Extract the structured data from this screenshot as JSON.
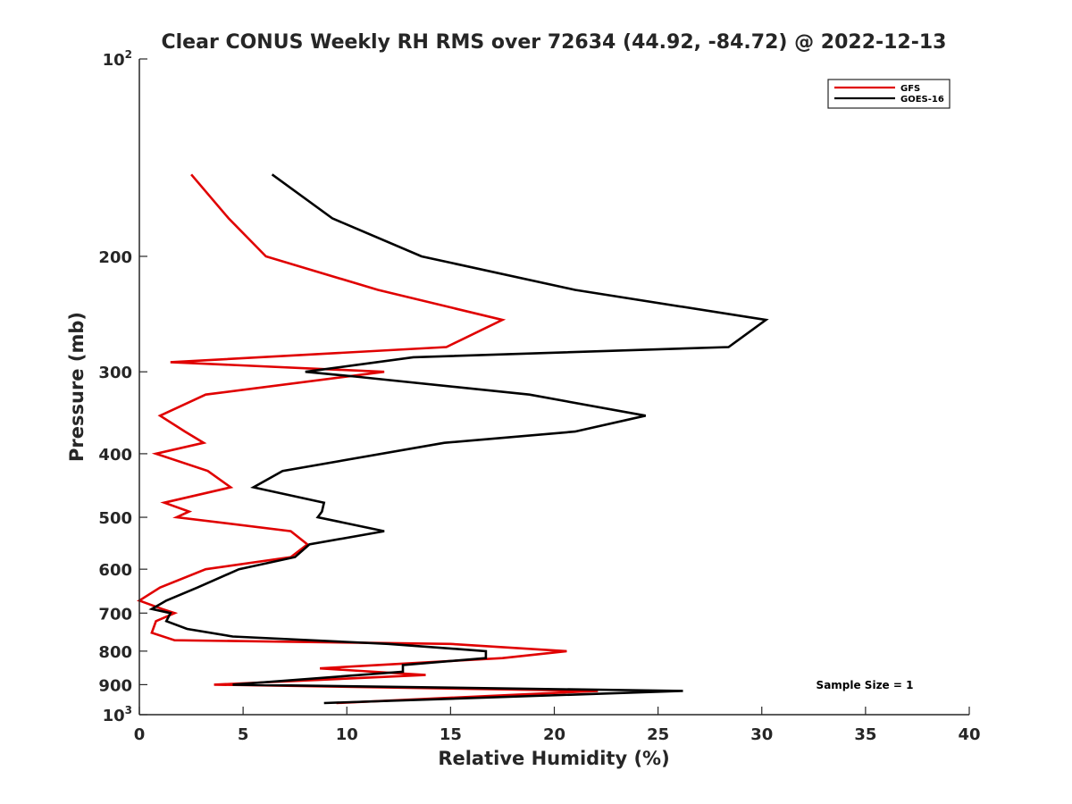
{
  "chart_data": {
    "type": "line",
    "title": "Clear CONUS Weekly RH RMS over 72634 (44.92, -84.72) @ 2022-12-13",
    "xlabel": "Relative Humidity (%)",
    "ylabel": "Pressure (mb)",
    "xlim": [
      0,
      40
    ],
    "ylim": [
      100,
      1000
    ],
    "y_scale": "log",
    "y_reversed": true,
    "x_ticks": [
      "0",
      "5",
      "10",
      "15",
      "20",
      "25",
      "30",
      "35",
      "40"
    ],
    "y_ticks": [
      {
        "value": 100,
        "base": "10",
        "exp": "2"
      },
      {
        "value": 200,
        "label": "200"
      },
      {
        "value": 300,
        "label": "300"
      },
      {
        "value": 400,
        "label": "400"
      },
      {
        "value": 500,
        "label": "500"
      },
      {
        "value": 600,
        "label": "600"
      },
      {
        "value": 700,
        "label": "700"
      },
      {
        "value": 800,
        "label": "800"
      },
      {
        "value": 900,
        "label": "900"
      },
      {
        "value": 1000,
        "base": "10",
        "exp": "3"
      }
    ],
    "legend_position": "top-right",
    "annotation": "Sample Size = 1",
    "series": [
      {
        "name": "GFS",
        "color": "#e00000",
        "points": [
          [
            2.5,
            150
          ],
          [
            4.3,
            175
          ],
          [
            6.1,
            200
          ],
          [
            11.5,
            225
          ],
          [
            17.5,
            250
          ],
          [
            14.8,
            275
          ],
          [
            1.5,
            290
          ],
          [
            11.8,
            300
          ],
          [
            3.2,
            325
          ],
          [
            1.0,
            350
          ],
          [
            2.2,
            370
          ],
          [
            3.1,
            385
          ],
          [
            0.8,
            400
          ],
          [
            3.3,
            425
          ],
          [
            4.4,
            450
          ],
          [
            1.2,
            475
          ],
          [
            2.4,
            490
          ],
          [
            1.8,
            500
          ],
          [
            7.3,
            525
          ],
          [
            8.1,
            550
          ],
          [
            7.3,
            575
          ],
          [
            3.2,
            600
          ],
          [
            1.0,
            640
          ],
          [
            0.0,
            670
          ],
          [
            1.1,
            690
          ],
          [
            1.7,
            700
          ],
          [
            0.8,
            720
          ],
          [
            0.6,
            750
          ],
          [
            1.7,
            770
          ],
          [
            15.0,
            780
          ],
          [
            20.6,
            800
          ],
          [
            17.5,
            820
          ],
          [
            11.5,
            840
          ],
          [
            8.7,
            850
          ],
          [
            13.8,
            870
          ],
          [
            3.6,
            900
          ],
          [
            22.1,
            920
          ],
          [
            9.5,
            960
          ]
        ]
      },
      {
        "name": "GOES-16",
        "color": "#000000",
        "points": [
          [
            6.4,
            150
          ],
          [
            9.3,
            175
          ],
          [
            13.6,
            200
          ],
          [
            21.0,
            225
          ],
          [
            30.2,
            250
          ],
          [
            28.4,
            275
          ],
          [
            13.2,
            285
          ],
          [
            8.0,
            300
          ],
          [
            10.4,
            305
          ],
          [
            18.8,
            325
          ],
          [
            24.4,
            350
          ],
          [
            21.0,
            370
          ],
          [
            14.7,
            385
          ],
          [
            6.9,
            425
          ],
          [
            5.5,
            450
          ],
          [
            8.9,
            475
          ],
          [
            8.8,
            490
          ],
          [
            8.6,
            500
          ],
          [
            11.8,
            525
          ],
          [
            8.2,
            550
          ],
          [
            7.5,
            575
          ],
          [
            4.8,
            600
          ],
          [
            2.8,
            640
          ],
          [
            1.3,
            670
          ],
          [
            0.6,
            690
          ],
          [
            1.5,
            700
          ],
          [
            1.3,
            720
          ],
          [
            2.3,
            740
          ],
          [
            4.5,
            760
          ],
          [
            12.0,
            780
          ],
          [
            16.7,
            800
          ],
          [
            16.7,
            820
          ],
          [
            12.7,
            840
          ],
          [
            12.7,
            860
          ],
          [
            4.5,
            900
          ],
          [
            26.2,
            920
          ],
          [
            8.9,
            960
          ]
        ]
      }
    ]
  }
}
